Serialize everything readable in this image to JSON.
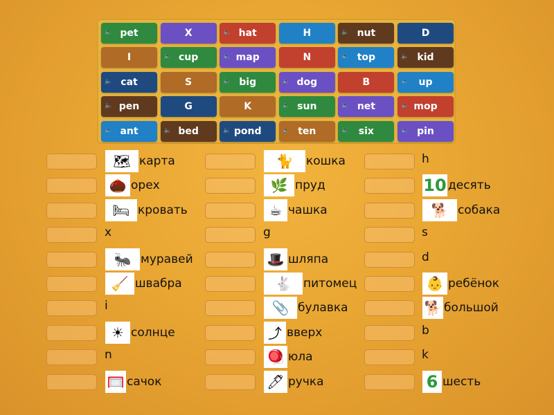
{
  "colors": {
    "green": "#2f8a3f",
    "purple": "#6b50c4",
    "red": "#c1402e",
    "blue": "#2081c6",
    "brown": "#603a1f",
    "navy": "#1f4a80",
    "tan": "#b06b27"
  },
  "tiles": [
    [
      {
        "t": "pet",
        "c": "green",
        "audio": true
      },
      {
        "t": "X",
        "c": "purple"
      },
      {
        "t": "hat",
        "c": "red",
        "audio": true
      },
      {
        "t": "H",
        "c": "blue"
      },
      {
        "t": "nut",
        "c": "brown",
        "audio": true
      },
      {
        "t": "D",
        "c": "navy"
      }
    ],
    [
      {
        "t": "I",
        "c": "tan"
      },
      {
        "t": "cup",
        "c": "green",
        "audio": true
      },
      {
        "t": "map",
        "c": "purple",
        "audio": true
      },
      {
        "t": "N",
        "c": "red"
      },
      {
        "t": "top",
        "c": "blue",
        "audio": true
      },
      {
        "t": "kid",
        "c": "brown",
        "audio": true
      }
    ],
    [
      {
        "t": "cat",
        "c": "navy",
        "audio": true
      },
      {
        "t": "S",
        "c": "tan"
      },
      {
        "t": "big",
        "c": "green",
        "audio": true
      },
      {
        "t": "dog",
        "c": "purple",
        "audio": true
      },
      {
        "t": "B",
        "c": "red"
      },
      {
        "t": "up",
        "c": "blue",
        "audio": true
      }
    ],
    [
      {
        "t": "pen",
        "c": "brown",
        "audio": true
      },
      {
        "t": "G",
        "c": "navy"
      },
      {
        "t": "K",
        "c": "tan"
      },
      {
        "t": "sun",
        "c": "green",
        "audio": true
      },
      {
        "t": "net",
        "c": "purple",
        "audio": true
      },
      {
        "t": "mop",
        "c": "red",
        "audio": true
      }
    ],
    [
      {
        "t": "ant",
        "c": "blue",
        "audio": true
      },
      {
        "t": "bed",
        "c": "brown",
        "audio": true
      },
      {
        "t": "pond",
        "c": "navy",
        "audio": true
      },
      {
        "t": "ten",
        "c": "tan",
        "audio": true
      },
      {
        "t": "six",
        "c": "green",
        "audio": true
      },
      {
        "t": "pin",
        "c": "purple",
        "audio": true
      }
    ]
  ],
  "columns": [
    [
      {
        "label": "карта",
        "img": "map",
        "e": "🗺",
        "w": 48
      },
      {
        "label": "орех",
        "img": "nut",
        "e": "🌰",
        "w": 36
      },
      {
        "label": "кровать",
        "img": "bed",
        "e": "🛏",
        "w": 46
      },
      {
        "label": "x"
      },
      {
        "label": "муравей",
        "img": "ant",
        "e": "🐜",
        "w": 50
      },
      {
        "label": "швабра",
        "img": "mop",
        "e": "🧹",
        "w": 42
      },
      {
        "label": "i"
      },
      {
        "label": "солнце",
        "img": "sun",
        "e": "☀",
        "w": 36
      },
      {
        "label": "n"
      },
      {
        "label": "сачок",
        "img": "net",
        "e": "🥅",
        "w": 30
      }
    ],
    [
      {
        "label": "кошка",
        "img": "cat",
        "e": "🐈",
        "w": 60
      },
      {
        "label": "пруд",
        "img": "pond",
        "e": "🌿",
        "w": 44
      },
      {
        "label": "чашка",
        "img": "cup",
        "e": "☕",
        "w": 34
      },
      {
        "label": "g"
      },
      {
        "label": "шляпа",
        "img": "hat",
        "e": "🎩",
        "w": 34
      },
      {
        "label": "питомец",
        "img": "pet",
        "e": "🐇",
        "w": 56
      },
      {
        "label": "булавка",
        "img": "pin",
        "e": "📎",
        "w": 48
      },
      {
        "label": "вверх",
        "img": "up",
        "e": "⤴",
        "w": 32
      },
      {
        "label": "юла",
        "img": "top",
        "e": "🪀",
        "w": 34
      },
      {
        "label": "ручка",
        "img": "pen",
        "e": "🖊",
        "w": 34
      }
    ],
    [
      {
        "label": "h"
      },
      {
        "label": "десять",
        "img": "ten",
        "e": "10",
        "w": 36
      },
      {
        "label": "собака",
        "img": "dog",
        "e": "🐕",
        "w": 50
      },
      {
        "label": "s"
      },
      {
        "label": "d"
      },
      {
        "label": "ребёнок",
        "img": "kid",
        "e": "👶",
        "w": 36
      },
      {
        "label": "большой",
        "img": "big",
        "e": "🐕",
        "w": 30
      },
      {
        "label": "b"
      },
      {
        "label": "k"
      },
      {
        "label": "шесть",
        "img": "six",
        "e": "6",
        "w": 28
      }
    ]
  ]
}
